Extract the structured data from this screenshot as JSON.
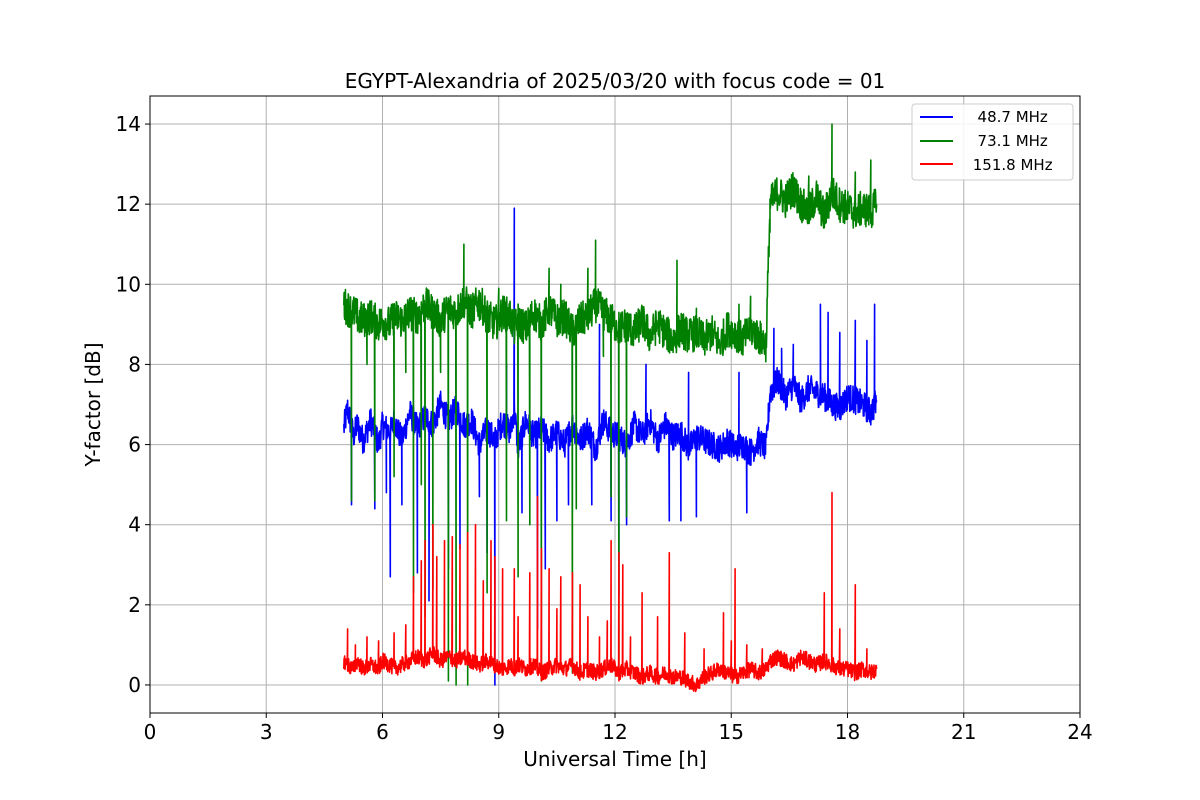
{
  "chart_data": {
    "type": "line",
    "title": "EGYPT-Alexandria of 2025/03/20 with focus code = 01",
    "xlabel": "Universal Time [h]",
    "ylabel": "Y-factor [dB]",
    "xlim": [
      0,
      24
    ],
    "ylim": [
      -0.7,
      14.7
    ],
    "xticks": [
      0,
      3,
      6,
      9,
      12,
      15,
      18,
      21,
      24
    ],
    "yticks": [
      0,
      2,
      4,
      6,
      8,
      10,
      12,
      14
    ],
    "grid": true,
    "legend_position": "top-right",
    "series": [
      {
        "name": "  48.7 MHz",
        "color": "#0000ff",
        "x": [
          5.0,
          5.1,
          5.25,
          5.35,
          5.5,
          5.7,
          5.9,
          6.0,
          6.2,
          6.3,
          6.5,
          6.7,
          6.9,
          7.1,
          7.3,
          7.5,
          7.7,
          7.9,
          8.1,
          8.3,
          8.5,
          8.7,
          8.9,
          9.1,
          9.3,
          9.4,
          9.5,
          9.7,
          9.9,
          10.1,
          10.3,
          10.5,
          10.7,
          10.9,
          11.1,
          11.3,
          11.5,
          11.7,
          11.9,
          12.1,
          12.3,
          12.5,
          12.7,
          12.9,
          13.1,
          13.3,
          13.5,
          13.7,
          13.9,
          14.1,
          14.3,
          14.5,
          14.7,
          14.9,
          15.1,
          15.3,
          15.5,
          15.7,
          15.9,
          16.0,
          16.2,
          16.4,
          16.6,
          16.8,
          17.0,
          17.2,
          17.4,
          17.6,
          17.8,
          18.0,
          18.2,
          18.4,
          18.6,
          18.75
        ],
        "y": [
          6.4,
          6.9,
          6.2,
          6.5,
          6.1,
          6.6,
          6.0,
          6.5,
          6.3,
          6.6,
          6.1,
          6.8,
          6.4,
          6.7,
          6.5,
          7.0,
          6.6,
          6.9,
          6.5,
          6.6,
          6.0,
          6.4,
          6.1,
          6.6,
          6.3,
          6.9,
          5.9,
          6.6,
          6.2,
          6.4,
          6.1,
          6.3,
          6.0,
          6.5,
          6.1,
          6.4,
          5.9,
          6.6,
          6.3,
          6.2,
          6.0,
          6.5,
          6.2,
          6.6,
          6.1,
          6.5,
          6.2,
          6.3,
          5.9,
          6.2,
          6.1,
          6.0,
          5.9,
          6.1,
          5.9,
          6.0,
          5.8,
          6.1,
          5.9,
          7.3,
          7.6,
          7.2,
          7.5,
          7.1,
          7.4,
          7.3,
          7.2,
          7.0,
          6.9,
          7.2,
          7.1,
          7.0,
          6.8,
          7.1
        ]
      },
      {
        "name": "  73.1 MHz",
        "color": "#008000",
        "x": [
          5.0,
          5.1,
          5.25,
          5.35,
          5.5,
          5.7,
          5.9,
          6.0,
          6.2,
          6.3,
          6.5,
          6.7,
          6.9,
          7.1,
          7.3,
          7.5,
          7.7,
          7.9,
          8.1,
          8.3,
          8.5,
          8.7,
          8.9,
          9.1,
          9.3,
          9.4,
          9.5,
          9.7,
          9.9,
          10.1,
          10.3,
          10.5,
          10.7,
          10.9,
          11.1,
          11.3,
          11.5,
          11.7,
          11.9,
          12.1,
          12.3,
          12.5,
          12.7,
          12.9,
          13.1,
          13.3,
          13.5,
          13.7,
          13.9,
          14.1,
          14.3,
          14.5,
          14.7,
          14.9,
          15.1,
          15.3,
          15.5,
          15.7,
          15.9,
          16.0,
          16.2,
          16.4,
          16.6,
          16.8,
          17.0,
          17.2,
          17.4,
          17.6,
          17.8,
          18.0,
          18.2,
          18.4,
          18.6,
          18.75
        ],
        "y": [
          9.5,
          9.4,
          9.3,
          9.2,
          9.1,
          9.2,
          9.0,
          9.1,
          9.0,
          9.2,
          9.1,
          9.3,
          9.2,
          9.5,
          9.3,
          9.1,
          9.4,
          9.3,
          9.6,
          9.3,
          9.6,
          9.2,
          9.0,
          9.3,
          9.2,
          8.9,
          9.1,
          8.9,
          9.3,
          9.0,
          9.4,
          9.1,
          9.2,
          8.8,
          9.1,
          9.2,
          9.5,
          9.3,
          9.1,
          8.9,
          9.0,
          8.8,
          9.1,
          8.7,
          9.0,
          8.8,
          8.6,
          8.9,
          8.7,
          8.8,
          8.6,
          8.8,
          8.5,
          8.9,
          8.8,
          8.6,
          8.9,
          8.7,
          8.5,
          12.0,
          12.3,
          12.1,
          12.4,
          12.0,
          11.8,
          12.2,
          11.7,
          12.3,
          12.0,
          11.9,
          11.8,
          11.9,
          11.8,
          12.0
        ]
      },
      {
        "name": " 151.8 MHz",
        "color": "#ff0000",
        "x": [
          5.0,
          5.1,
          5.25,
          5.35,
          5.5,
          5.7,
          5.9,
          6.0,
          6.2,
          6.3,
          6.5,
          6.7,
          6.9,
          7.1,
          7.3,
          7.5,
          7.7,
          7.9,
          8.1,
          8.3,
          8.5,
          8.7,
          8.9,
          9.1,
          9.3,
          9.4,
          9.5,
          9.7,
          9.9,
          10.1,
          10.3,
          10.5,
          10.7,
          10.9,
          11.1,
          11.3,
          11.5,
          11.7,
          11.9,
          12.1,
          12.3,
          12.5,
          12.7,
          12.9,
          13.1,
          13.3,
          13.5,
          13.7,
          13.9,
          14.1,
          14.3,
          14.5,
          14.7,
          14.9,
          15.1,
          15.3,
          15.5,
          15.7,
          15.9,
          16.0,
          16.2,
          16.4,
          16.6,
          16.8,
          17.0,
          17.2,
          17.4,
          17.6,
          17.8,
          18.0,
          18.2,
          18.4,
          18.6,
          18.75
        ],
        "y": [
          0.6,
          0.5,
          0.4,
          0.6,
          0.4,
          0.5,
          0.4,
          0.6,
          0.5,
          0.4,
          0.5,
          0.6,
          0.7,
          0.6,
          0.8,
          0.6,
          0.7,
          0.6,
          0.7,
          0.6,
          0.5,
          0.6,
          0.5,
          0.4,
          0.5,
          0.4,
          0.5,
          0.4,
          0.5,
          0.3,
          0.4,
          0.5,
          0.4,
          0.5,
          0.3,
          0.4,
          0.3,
          0.4,
          0.5,
          0.3,
          0.4,
          0.3,
          0.2,
          0.3,
          0.2,
          0.3,
          0.2,
          0.2,
          0.1,
          0.0,
          0.2,
          0.3,
          0.4,
          0.3,
          0.2,
          0.3,
          0.4,
          0.3,
          0.4,
          0.6,
          0.7,
          0.6,
          0.5,
          0.7,
          0.6,
          0.5,
          0.6,
          0.5,
          0.4,
          0.4,
          0.3,
          0.4,
          0.3,
          0.4
        ]
      }
    ],
    "spikes": {
      "48.7": [
        [
          5.2,
          4.5
        ],
        [
          5.8,
          4.4
        ],
        [
          6.1,
          4.8
        ],
        [
          6.2,
          2.7
        ],
        [
          6.5,
          4.5
        ],
        [
          6.9,
          2.8
        ],
        [
          7.2,
          2.1
        ],
        [
          7.7,
          2.9
        ],
        [
          8.0,
          3.4
        ],
        [
          8.5,
          4.7
        ],
        [
          8.7,
          3.3
        ],
        [
          8.9,
          0.0
        ],
        [
          9.2,
          8.0
        ],
        [
          9.4,
          11.9
        ],
        [
          9.6,
          4.3
        ],
        [
          10.0,
          1.4
        ],
        [
          10.2,
          2.9
        ],
        [
          10.5,
          4.1
        ],
        [
          10.8,
          4.5
        ],
        [
          11.4,
          4.5
        ],
        [
          11.6,
          9.0
        ],
        [
          11.9,
          4.1
        ],
        [
          12.1,
          2.2
        ],
        [
          12.3,
          4.0
        ],
        [
          12.8,
          8.0
        ],
        [
          13.4,
          4.1
        ],
        [
          13.7,
          4.1
        ],
        [
          13.9,
          7.8
        ],
        [
          14.1,
          4.2
        ],
        [
          15.2,
          7.8
        ],
        [
          15.4,
          4.3
        ],
        [
          16.1,
          8.9
        ],
        [
          16.3,
          8.4
        ],
        [
          16.6,
          8.5
        ],
        [
          17.3,
          9.5
        ],
        [
          17.5,
          9.3
        ],
        [
          17.8,
          8.8
        ],
        [
          18.2,
          9.1
        ],
        [
          18.5,
          8.6
        ],
        [
          18.7,
          9.5
        ]
      ],
      "73.1": [
        [
          5.2,
          4.6
        ],
        [
          5.4,
          8.8
        ],
        [
          5.6,
          8.0
        ],
        [
          5.8,
          4.6
        ],
        [
          6.1,
          8.8
        ],
        [
          6.3,
          5.2
        ],
        [
          6.6,
          7.8
        ],
        [
          6.8,
          2.3
        ],
        [
          7.0,
          5.0
        ],
        [
          7.1,
          1.7
        ],
        [
          7.3,
          2.4
        ],
        [
          7.5,
          7.8
        ],
        [
          7.7,
          0.1
        ],
        [
          7.9,
          0.0
        ],
        [
          8.1,
          11.0
        ],
        [
          8.2,
          0.0
        ],
        [
          8.5,
          9.1
        ],
        [
          8.7,
          2.3
        ],
        [
          9.0,
          9.9
        ],
        [
          9.2,
          4.1
        ],
        [
          9.4,
          9.0
        ],
        [
          9.5,
          2.7
        ],
        [
          9.8,
          4.0
        ],
        [
          10.1,
          0.1
        ],
        [
          10.3,
          10.4
        ],
        [
          10.6,
          10.0
        ],
        [
          10.9,
          0.3
        ],
        [
          11.0,
          4.4
        ],
        [
          11.3,
          10.4
        ],
        [
          11.5,
          11.1
        ],
        [
          11.7,
          8.2
        ],
        [
          11.9,
          4.7
        ],
        [
          12.1,
          0.4
        ],
        [
          12.3,
          4.2
        ],
        [
          12.7,
          9.4
        ],
        [
          13.2,
          9.0
        ],
        [
          13.6,
          10.6
        ],
        [
          14.1,
          9.4
        ],
        [
          15.2,
          9.5
        ],
        [
          15.5,
          9.7
        ],
        [
          16.0,
          11.3
        ],
        [
          16.3,
          12.5
        ],
        [
          17.0,
          12.7
        ],
        [
          17.6,
          14.0
        ],
        [
          17.8,
          12.3
        ],
        [
          18.2,
          12.8
        ],
        [
          18.6,
          13.1
        ]
      ],
      "151.8": [
        [
          5.1,
          1.4
        ],
        [
          5.3,
          1.0
        ],
        [
          5.6,
          1.2
        ],
        [
          5.9,
          1.1
        ],
        [
          6.3,
          1.3
        ],
        [
          6.6,
          1.5
        ],
        [
          6.8,
          2.7
        ],
        [
          7.0,
          3.1
        ],
        [
          7.1,
          3.6
        ],
        [
          7.3,
          4.0
        ],
        [
          7.4,
          3.2
        ],
        [
          7.6,
          3.6
        ],
        [
          7.8,
          3.7
        ],
        [
          8.0,
          3.5
        ],
        [
          8.2,
          3.8
        ],
        [
          8.4,
          4.0
        ],
        [
          8.6,
          2.6
        ],
        [
          8.8,
          3.6
        ],
        [
          8.9,
          3.2
        ],
        [
          9.1,
          2.9
        ],
        [
          9.4,
          2.9
        ],
        [
          9.5,
          1.7
        ],
        [
          9.8,
          2.8
        ],
        [
          10.0,
          4.7
        ],
        [
          10.1,
          3.4
        ],
        [
          10.3,
          2.9
        ],
        [
          10.5,
          1.9
        ],
        [
          10.6,
          2.7
        ],
        [
          10.9,
          2.8
        ],
        [
          11.1,
          2.5
        ],
        [
          11.3,
          1.7
        ],
        [
          11.6,
          1.2
        ],
        [
          11.8,
          1.6
        ],
        [
          11.9,
          3.6
        ],
        [
          12.1,
          3.3
        ],
        [
          12.2,
          3.0
        ],
        [
          12.4,
          1.2
        ],
        [
          12.7,
          2.3
        ],
        [
          13.1,
          1.7
        ],
        [
          13.4,
          3.3
        ],
        [
          13.8,
          1.3
        ],
        [
          14.3,
          0.9
        ],
        [
          14.8,
          1.8
        ],
        [
          15.0,
          1.1
        ],
        [
          15.1,
          2.9
        ],
        [
          15.4,
          1.0
        ],
        [
          15.8,
          0.9
        ],
        [
          17.4,
          2.3
        ],
        [
          17.6,
          4.8
        ],
        [
          17.8,
          1.4
        ],
        [
          18.2,
          2.5
        ],
        [
          18.5,
          0.9
        ]
      ]
    }
  }
}
